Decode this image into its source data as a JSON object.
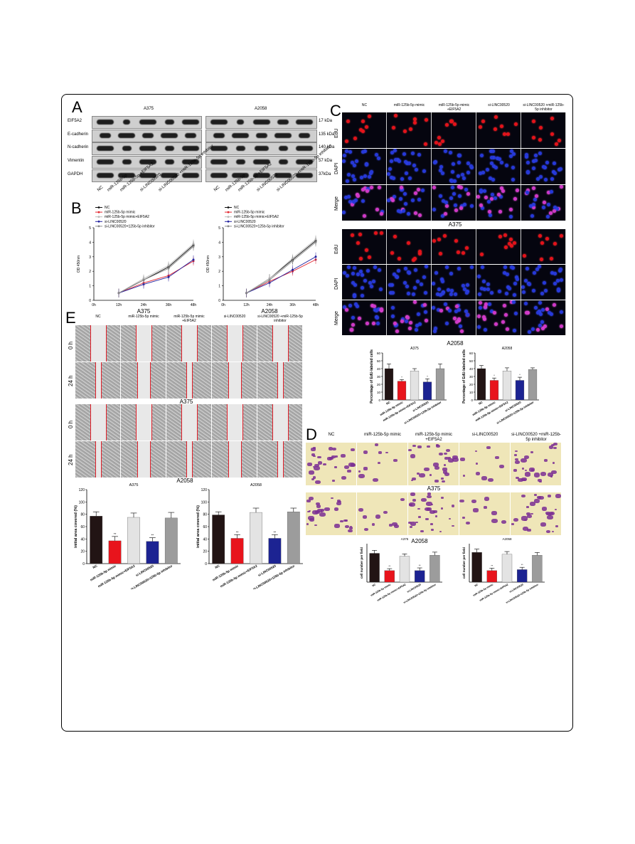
{
  "panels": {
    "A": "A",
    "B": "B",
    "C": "C",
    "D": "D",
    "E": "E"
  },
  "A": {
    "cell_lines": [
      "A375",
      "A2058"
    ],
    "rows": [
      {
        "label": "EIF5A2",
        "kda": "17 kDa"
      },
      {
        "label": "E-cadherin",
        "kda": "135 kDa"
      },
      {
        "label": "N-cadherin",
        "kda": "140 kDa"
      },
      {
        "label": "Vimentin",
        "kda": "57 kDa"
      },
      {
        "label": "GAPDH",
        "kda": "37kDa"
      }
    ],
    "lanes": [
      "NC",
      "miR-125b-5p",
      "miR-125b-5p +EIF5A2",
      "si-LINC00520",
      "si-LINC00520 +miR-125b-5p inhibitor"
    ]
  },
  "B": {
    "legend": [
      "NC",
      "miR-125b-5p mimic",
      "miR-125b-5p mimic+EIF5A2",
      "si-LINC00520",
      "si-LINC00520+125b-5p inhibitor"
    ],
    "legend_colors": [
      "#111111",
      "#e3262f",
      "#bbbbbb",
      "#2424a0",
      "#888888"
    ],
    "ylabel_a375": "OD 450nm",
    "ylabel_a2058": "OD 450nm",
    "xticks": [
      "0h",
      "12h",
      "24h",
      "36h",
      "48h"
    ],
    "yticks": [
      "0",
      "1",
      "2",
      "3",
      "4",
      "5"
    ],
    "title_a375": "A375",
    "title_a2058": "A2058"
  },
  "C": {
    "columns": [
      "NC",
      "miR-125b-5p mimic",
      "miR-125b-5p mimic +EIF5A2",
      "si-LINC00520",
      "si-LINC00520 +miR-125b-5p inhibitor"
    ],
    "rows": [
      "EdU",
      "DAPI",
      "Merge"
    ],
    "label_a375": "A375",
    "label_a2058": "A2058",
    "bar_title_a375": "A375",
    "bar_title_a2058": "A2058",
    "bar_ylabel": "Percentage of EdU-labeled cells",
    "bar_ylabel_2": "Percentage of EdU-labeled cells",
    "bar_yticks": [
      "0",
      "10",
      "20",
      "30",
      "40",
      "50",
      "60"
    ],
    "bar_cats": [
      "NC",
      "miR-125b-5p mimic",
      "miR-125b-5p mimic+EIF5A2",
      "si-LINC00520",
      "si-LINC00520+125b-5p inhibitor"
    ],
    "sig": [
      "*",
      "*"
    ]
  },
  "D": {
    "columns": [
      "NC",
      "miR-125b-5p mimic",
      "miR-125b-5p mimic +EIF5A2",
      "si-LINC00520",
      "si-LINC00520 +miR-125b-5p inhibitor"
    ],
    "label_a375": "A375",
    "label_a2058": "A2058",
    "bar_title_a375": "A375",
    "bar_title_a2058": "A2058",
    "bar_ylabel": "cell number per field",
    "bar_ylabel_2": "cell number per field",
    "bar_cats": [
      "NC",
      "miR-125b-5p mimic",
      "miR-125b-5p mimic+EIF5A2",
      "si-LINC00520",
      "si-LINC00520+125b-5p inhibitor"
    ],
    "sig": [
      "**",
      "**"
    ]
  },
  "E": {
    "columns": [
      "NC",
      "miR-125b-5p mimic",
      "miR-125b-5p mimic +EIF5A2",
      "si-LINC00520",
      "si-LINC00520 +miR-125b-5p inhibitor"
    ],
    "rows": [
      "0 h",
      "24 h"
    ],
    "label_a375": "A375",
    "label_a2058": "A2058",
    "bar_title_a375": "A375",
    "bar_title_a2058": "A2058",
    "bar_ylabel": "initial area covered (%)",
    "bar_ylabel_2": "initial area covered (%)",
    "bar_yticks": [
      "0",
      "20",
      "40",
      "60",
      "80",
      "100",
      "120"
    ],
    "bar_cats": [
      "NC",
      "miR-125b-5p mimic",
      "miR-125b-5p mimic+EIF5A2",
      "si-LINC00520",
      "si-LINC00520+125b-5p inhibitor"
    ],
    "sig": [
      "**",
      "**"
    ]
  },
  "bar_colors": [
    "#221414",
    "#e8141c",
    "#e3e3e3",
    "#1c2392",
    "#9c9c9c"
  ],
  "chart_data": [
    {
      "type": "line",
      "title": "A375",
      "xlabel": "",
      "ylabel": "OD 450nm",
      "x": [
        "0h",
        "12h",
        "24h",
        "36h",
        "48h"
      ],
      "ylim": [
        0,
        5
      ],
      "series": [
        {
          "name": "NC",
          "values": [
            null,
            0.5,
            1.4,
            2.3,
            3.8
          ]
        },
        {
          "name": "miR-125b-5p mimic",
          "values": [
            null,
            0.5,
            1.2,
            1.7,
            2.7
          ]
        },
        {
          "name": "miR-125b-5p mimic+EIF5A2",
          "values": [
            null,
            0.5,
            1.5,
            2.4,
            3.9
          ]
        },
        {
          "name": "si-LINC00520",
          "values": [
            null,
            0.5,
            1.1,
            1.6,
            2.8
          ]
        },
        {
          "name": "si-LINC00520+125b-5p inhibitor",
          "values": [
            null,
            0.5,
            1.4,
            2.2,
            3.7
          ]
        }
      ]
    },
    {
      "type": "line",
      "title": "A2058",
      "xlabel": "",
      "ylabel": "OD 450nm",
      "x": [
        "0h",
        "12h",
        "24h",
        "36h",
        "48h"
      ],
      "ylim": [
        0,
        5
      ],
      "series": [
        {
          "name": "NC",
          "values": [
            null,
            0.5,
            1.5,
            2.8,
            4.1
          ]
        },
        {
          "name": "miR-125b-5p mimic",
          "values": [
            null,
            0.5,
            1.3,
            2.0,
            2.8
          ]
        },
        {
          "name": "miR-125b-5p mimic+EIF5A2",
          "values": [
            null,
            0.5,
            1.5,
            2.9,
            4.2
          ]
        },
        {
          "name": "si-LINC00520",
          "values": [
            null,
            0.5,
            1.2,
            2.1,
            3.0
          ]
        },
        {
          "name": "si-LINC00520+125b-5p inhibitor",
          "values": [
            null,
            0.5,
            1.4,
            2.7,
            4.0
          ]
        }
      ]
    },
    {
      "type": "bar",
      "title": "A375",
      "ylabel": "Percentage of EdU-labeled cells",
      "ylim": [
        0,
        60
      ],
      "categories": [
        "NC",
        "miR-125b-5p mimic",
        "miR-125b-5p mimic+EIF5A2",
        "si-LINC00520",
        "si-LINC00520+125b-5p inhibitor"
      ],
      "values": [
        40,
        24,
        37,
        23,
        40
      ],
      "errors": [
        6,
        2,
        3,
        4,
        6
      ]
    },
    {
      "type": "bar",
      "title": "A2058",
      "ylabel": "Percentage of EdU-labeled cells",
      "ylim": [
        0,
        60
      ],
      "categories": [
        "NC",
        "miR-125b-5p mimic",
        "miR-125b-5p mimic+EIF5A2",
        "si-LINC00520",
        "si-LINC00520+125b-5p inhibitor"
      ],
      "values": [
        40,
        25,
        37,
        25,
        39
      ],
      "errors": [
        4,
        3,
        4,
        4,
        2
      ]
    },
    {
      "type": "bar",
      "title": "A375",
      "ylabel": "initial area covered (%)",
      "ylim": [
        0,
        120
      ],
      "categories": [
        "NC",
        "miR-125b-5p mimic",
        "miR-125b-5p mimic+EIF5A2",
        "si-LINC00520",
        "si-LINC00520+125b-5p inhibitor"
      ],
      "values": [
        77,
        37,
        75,
        36,
        74
      ],
      "errors": [
        7,
        7,
        7,
        6,
        9
      ]
    },
    {
      "type": "bar",
      "title": "A2058",
      "ylabel": "initial area covered (%)",
      "ylim": [
        0,
        120
      ],
      "categories": [
        "NC",
        "miR-125b-5p mimic",
        "miR-125b-5p mimic+EIF5A2",
        "si-LINC00520",
        "si-LINC00520+125b-5p inhibitor"
      ],
      "values": [
        79,
        41,
        83,
        41,
        84
      ],
      "errors": [
        5,
        6,
        7,
        6,
        6
      ]
    },
    {
      "type": "bar",
      "title": "A375",
      "ylabel": "cell number per field",
      "ylim": [
        0,
        200
      ],
      "categories": [
        "NC",
        "miR-125b-5p mimic",
        "miR-125b-5p mimic+EIF5A2",
        "si-LINC00520",
        "si-LINC00520+125b-5p inhibitor"
      ],
      "values": [
        150,
        60,
        135,
        60,
        140
      ],
      "errors": [
        15,
        10,
        12,
        14,
        16
      ]
    },
    {
      "type": "bar",
      "title": "A2058",
      "ylabel": "cell number per field",
      "ylim": [
        0,
        200
      ],
      "categories": [
        "NC",
        "miR-125b-5p mimic",
        "miR-125b-5p mimic+EIF5A2",
        "si-LINC00520",
        "si-LINC00520+125b-5p inhibitor"
      ],
      "values": [
        155,
        60,
        145,
        65,
        140
      ],
      "errors": [
        17,
        13,
        14,
        12,
        14
      ]
    }
  ]
}
